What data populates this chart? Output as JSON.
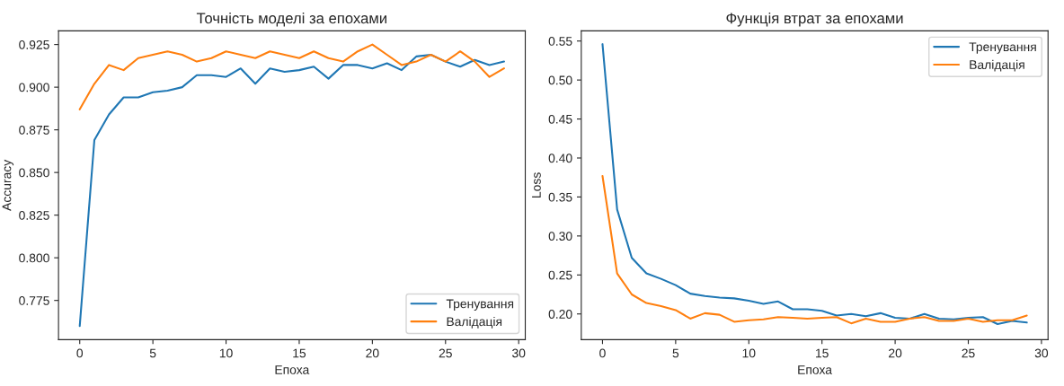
{
  "chart_data": [
    {
      "type": "line",
      "title": "Точність моделі за епохами",
      "xlabel": "Епоха",
      "ylabel": "Accuracy",
      "x": [
        0,
        1,
        2,
        3,
        4,
        5,
        6,
        7,
        8,
        9,
        10,
        11,
        12,
        13,
        14,
        15,
        16,
        17,
        18,
        19,
        20,
        21,
        22,
        23,
        24,
        25,
        26,
        27,
        28,
        29
      ],
      "series": [
        {
          "name": "Тренування",
          "color": "#1f77b4",
          "values": [
            0.76,
            0.869,
            0.884,
            0.894,
            0.894,
            0.897,
            0.898,
            0.9,
            0.907,
            0.907,
            0.906,
            0.911,
            0.902,
            0.911,
            0.909,
            0.91,
            0.912,
            0.905,
            0.913,
            0.913,
            0.911,
            0.914,
            0.91,
            0.918,
            0.919,
            0.915,
            0.912,
            0.916,
            0.913,
            0.915
          ]
        },
        {
          "name": "Валідація",
          "color": "#ff7f0e",
          "values": [
            0.887,
            0.902,
            0.913,
            0.91,
            0.917,
            0.919,
            0.921,
            0.919,
            0.915,
            0.917,
            0.921,
            0.919,
            0.917,
            0.921,
            0.919,
            0.917,
            0.921,
            0.917,
            0.915,
            0.921,
            0.925,
            0.919,
            0.913,
            0.915,
            0.919,
            0.915,
            0.921,
            0.915,
            0.906,
            0.911
          ]
        }
      ],
      "xlim": [
        -1.45,
        30.45
      ],
      "xticks": [
        0,
        5,
        10,
        15,
        20,
        25,
        30
      ],
      "ylim": [
        0.752,
        0.933
      ],
      "yticks": [
        {
          "value": 0.775,
          "label": "0.775"
        },
        {
          "value": 0.8,
          "label": "0.800"
        },
        {
          "value": 0.825,
          "label": "0.825"
        },
        {
          "value": 0.85,
          "label": "0.850"
        },
        {
          "value": 0.875,
          "label": "0.875"
        },
        {
          "value": 0.9,
          "label": "0.900"
        },
        {
          "value": 0.925,
          "label": "0.925"
        }
      ],
      "grid": false,
      "legend": "bottom right",
      "marker": "none",
      "line_style": "solid"
    },
    {
      "type": "line",
      "title": "Функція втрат за епохами",
      "xlabel": "Епоха",
      "ylabel": "Loss",
      "x": [
        0,
        1,
        2,
        3,
        4,
        5,
        6,
        7,
        8,
        9,
        10,
        11,
        12,
        13,
        14,
        15,
        16,
        17,
        18,
        19,
        20,
        21,
        22,
        23,
        24,
        25,
        26,
        27,
        28,
        29
      ],
      "series": [
        {
          "name": "Тренування",
          "color": "#1f77b4",
          "values": [
            0.546,
            0.334,
            0.272,
            0.252,
            0.245,
            0.237,
            0.226,
            0.223,
            0.221,
            0.22,
            0.217,
            0.213,
            0.216,
            0.206,
            0.206,
            0.204,
            0.198,
            0.2,
            0.197,
            0.201,
            0.195,
            0.194,
            0.2,
            0.194,
            0.193,
            0.195,
            0.196,
            0.187,
            0.191,
            0.189
          ]
        },
        {
          "name": "Валідація",
          "color": "#ff7f0e",
          "values": [
            0.377,
            0.252,
            0.225,
            0.214,
            0.21,
            0.205,
            0.194,
            0.201,
            0.199,
            0.19,
            0.192,
            0.193,
            0.196,
            0.195,
            0.194,
            0.195,
            0.196,
            0.188,
            0.194,
            0.19,
            0.19,
            0.194,
            0.196,
            0.191,
            0.191,
            0.194,
            0.19,
            0.192,
            0.192,
            0.198
          ]
        }
      ],
      "xlim": [
        -1.45,
        30.45
      ],
      "xticks": [
        0,
        5,
        10,
        15,
        20,
        25,
        30
      ],
      "ylim": [
        0.167,
        0.563
      ],
      "yticks": [
        {
          "value": 0.2,
          "label": "0.20"
        },
        {
          "value": 0.25,
          "label": "0.25"
        },
        {
          "value": 0.3,
          "label": "0.30"
        },
        {
          "value": 0.35,
          "label": "0.35"
        },
        {
          "value": 0.4,
          "label": "0.40"
        },
        {
          "value": 0.45,
          "label": "0.45"
        },
        {
          "value": 0.5,
          "label": "0.50"
        },
        {
          "value": 0.55,
          "label": "0.55"
        }
      ],
      "grid": false,
      "legend": "top right",
      "marker": "none",
      "line_style": "solid"
    }
  ]
}
